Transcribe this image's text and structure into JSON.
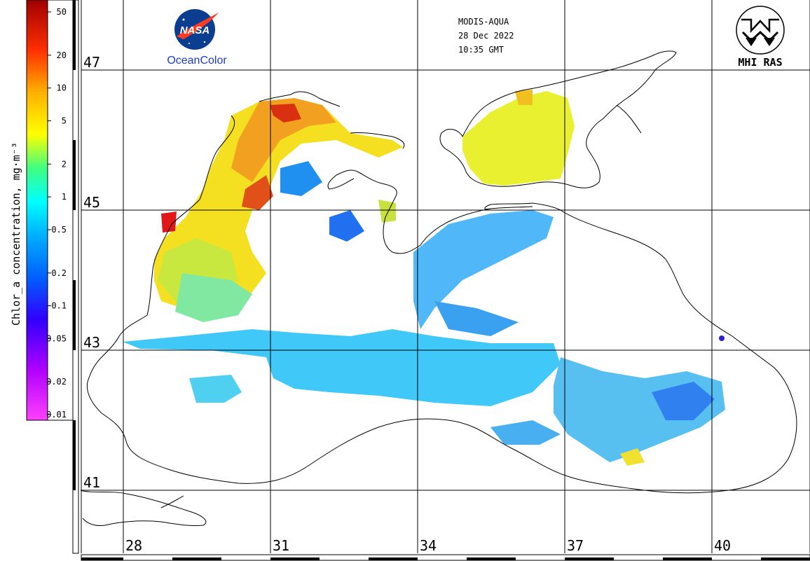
{
  "header": {
    "sensor": "MODIS-AQUA",
    "date": "28 Dec 2022",
    "time": "10:35 GMT"
  },
  "logos": {
    "nasa": {
      "badge_text": "NASA",
      "caption": "OceanColor"
    },
    "mhi": {
      "caption": "MHI RAS"
    }
  },
  "colorbar": {
    "title": "Chlor_a concentration, mg·m⁻³",
    "ticks": [
      {
        "label": "50",
        "value": 50
      },
      {
        "label": "20",
        "value": 20
      },
      {
        "label": "10",
        "value": 10
      },
      {
        "label": "5",
        "value": 5
      },
      {
        "label": "2",
        "value": 2
      },
      {
        "label": "1",
        "value": 1
      },
      {
        "label": "0.5",
        "value": 0.5
      },
      {
        "label": "0.2",
        "value": 0.2
      },
      {
        "label": "0.1",
        "value": 0.1
      },
      {
        "label": "0.05",
        "value": 0.05
      },
      {
        "label": "0.02",
        "value": 0.02
      },
      {
        "label": "0.01",
        "value": 0.01
      }
    ],
    "range": [
      0.01,
      70
    ],
    "scale": "log",
    "colors": [
      "#ff00ff",
      "#8000ff",
      "#0000ff",
      "#0080ff",
      "#00ffff",
      "#00ff80",
      "#ffff00",
      "#ff8000",
      "#ff0000",
      "#800000"
    ]
  },
  "latitudes": [
    {
      "label": "47",
      "value": 47
    },
    {
      "label": "45",
      "value": 45
    },
    {
      "label": "43",
      "value": 43
    },
    {
      "label": "41",
      "value": 41
    }
  ],
  "longitudes": [
    {
      "label": "28",
      "value": 28
    },
    {
      "label": "31",
      "value": 31
    },
    {
      "label": "34",
      "value": 34
    },
    {
      "label": "37",
      "value": 37
    },
    {
      "label": "40",
      "value": 40
    }
  ],
  "grid": true,
  "map_region": "Black Sea"
}
